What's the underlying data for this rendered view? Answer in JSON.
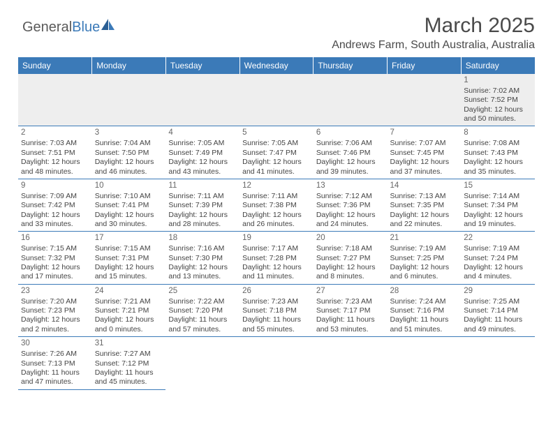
{
  "logo": {
    "text1": "General",
    "text2": "Blue"
  },
  "header": {
    "title": "March 2025",
    "subtitle": "Andrews Farm, South Australia, Australia"
  },
  "colors": {
    "header_bg": "#3b7ab8",
    "header_text": "#ffffff",
    "cell_border": "#3b7ab8",
    "firstrow_bg": "#eeeeee",
    "text": "#444444"
  },
  "weekdays": [
    "Sunday",
    "Monday",
    "Tuesday",
    "Wednesday",
    "Thursday",
    "Friday",
    "Saturday"
  ],
  "weeks": [
    [
      null,
      null,
      null,
      null,
      null,
      null,
      {
        "d": "1",
        "sr": "Sunrise: 7:02 AM",
        "ss": "Sunset: 7:52 PM",
        "dl1": "Daylight: 12 hours",
        "dl2": "and 50 minutes."
      }
    ],
    [
      {
        "d": "2",
        "sr": "Sunrise: 7:03 AM",
        "ss": "Sunset: 7:51 PM",
        "dl1": "Daylight: 12 hours",
        "dl2": "and 48 minutes."
      },
      {
        "d": "3",
        "sr": "Sunrise: 7:04 AM",
        "ss": "Sunset: 7:50 PM",
        "dl1": "Daylight: 12 hours",
        "dl2": "and 46 minutes."
      },
      {
        "d": "4",
        "sr": "Sunrise: 7:05 AM",
        "ss": "Sunset: 7:49 PM",
        "dl1": "Daylight: 12 hours",
        "dl2": "and 43 minutes."
      },
      {
        "d": "5",
        "sr": "Sunrise: 7:05 AM",
        "ss": "Sunset: 7:47 PM",
        "dl1": "Daylight: 12 hours",
        "dl2": "and 41 minutes."
      },
      {
        "d": "6",
        "sr": "Sunrise: 7:06 AM",
        "ss": "Sunset: 7:46 PM",
        "dl1": "Daylight: 12 hours",
        "dl2": "and 39 minutes."
      },
      {
        "d": "7",
        "sr": "Sunrise: 7:07 AM",
        "ss": "Sunset: 7:45 PM",
        "dl1": "Daylight: 12 hours",
        "dl2": "and 37 minutes."
      },
      {
        "d": "8",
        "sr": "Sunrise: 7:08 AM",
        "ss": "Sunset: 7:43 PM",
        "dl1": "Daylight: 12 hours",
        "dl2": "and 35 minutes."
      }
    ],
    [
      {
        "d": "9",
        "sr": "Sunrise: 7:09 AM",
        "ss": "Sunset: 7:42 PM",
        "dl1": "Daylight: 12 hours",
        "dl2": "and 33 minutes."
      },
      {
        "d": "10",
        "sr": "Sunrise: 7:10 AM",
        "ss": "Sunset: 7:41 PM",
        "dl1": "Daylight: 12 hours",
        "dl2": "and 30 minutes."
      },
      {
        "d": "11",
        "sr": "Sunrise: 7:11 AM",
        "ss": "Sunset: 7:39 PM",
        "dl1": "Daylight: 12 hours",
        "dl2": "and 28 minutes."
      },
      {
        "d": "12",
        "sr": "Sunrise: 7:11 AM",
        "ss": "Sunset: 7:38 PM",
        "dl1": "Daylight: 12 hours",
        "dl2": "and 26 minutes."
      },
      {
        "d": "13",
        "sr": "Sunrise: 7:12 AM",
        "ss": "Sunset: 7:36 PM",
        "dl1": "Daylight: 12 hours",
        "dl2": "and 24 minutes."
      },
      {
        "d": "14",
        "sr": "Sunrise: 7:13 AM",
        "ss": "Sunset: 7:35 PM",
        "dl1": "Daylight: 12 hours",
        "dl2": "and 22 minutes."
      },
      {
        "d": "15",
        "sr": "Sunrise: 7:14 AM",
        "ss": "Sunset: 7:34 PM",
        "dl1": "Daylight: 12 hours",
        "dl2": "and 19 minutes."
      }
    ],
    [
      {
        "d": "16",
        "sr": "Sunrise: 7:15 AM",
        "ss": "Sunset: 7:32 PM",
        "dl1": "Daylight: 12 hours",
        "dl2": "and 17 minutes."
      },
      {
        "d": "17",
        "sr": "Sunrise: 7:15 AM",
        "ss": "Sunset: 7:31 PM",
        "dl1": "Daylight: 12 hours",
        "dl2": "and 15 minutes."
      },
      {
        "d": "18",
        "sr": "Sunrise: 7:16 AM",
        "ss": "Sunset: 7:30 PM",
        "dl1": "Daylight: 12 hours",
        "dl2": "and 13 minutes."
      },
      {
        "d": "19",
        "sr": "Sunrise: 7:17 AM",
        "ss": "Sunset: 7:28 PM",
        "dl1": "Daylight: 12 hours",
        "dl2": "and 11 minutes."
      },
      {
        "d": "20",
        "sr": "Sunrise: 7:18 AM",
        "ss": "Sunset: 7:27 PM",
        "dl1": "Daylight: 12 hours",
        "dl2": "and 8 minutes."
      },
      {
        "d": "21",
        "sr": "Sunrise: 7:19 AM",
        "ss": "Sunset: 7:25 PM",
        "dl1": "Daylight: 12 hours",
        "dl2": "and 6 minutes."
      },
      {
        "d": "22",
        "sr": "Sunrise: 7:19 AM",
        "ss": "Sunset: 7:24 PM",
        "dl1": "Daylight: 12 hours",
        "dl2": "and 4 minutes."
      }
    ],
    [
      {
        "d": "23",
        "sr": "Sunrise: 7:20 AM",
        "ss": "Sunset: 7:23 PM",
        "dl1": "Daylight: 12 hours",
        "dl2": "and 2 minutes."
      },
      {
        "d": "24",
        "sr": "Sunrise: 7:21 AM",
        "ss": "Sunset: 7:21 PM",
        "dl1": "Daylight: 12 hours",
        "dl2": "and 0 minutes."
      },
      {
        "d": "25",
        "sr": "Sunrise: 7:22 AM",
        "ss": "Sunset: 7:20 PM",
        "dl1": "Daylight: 11 hours",
        "dl2": "and 57 minutes."
      },
      {
        "d": "26",
        "sr": "Sunrise: 7:23 AM",
        "ss": "Sunset: 7:18 PM",
        "dl1": "Daylight: 11 hours",
        "dl2": "and 55 minutes."
      },
      {
        "d": "27",
        "sr": "Sunrise: 7:23 AM",
        "ss": "Sunset: 7:17 PM",
        "dl1": "Daylight: 11 hours",
        "dl2": "and 53 minutes."
      },
      {
        "d": "28",
        "sr": "Sunrise: 7:24 AM",
        "ss": "Sunset: 7:16 PM",
        "dl1": "Daylight: 11 hours",
        "dl2": "and 51 minutes."
      },
      {
        "d": "29",
        "sr": "Sunrise: 7:25 AM",
        "ss": "Sunset: 7:14 PM",
        "dl1": "Daylight: 11 hours",
        "dl2": "and 49 minutes."
      }
    ],
    [
      {
        "d": "30",
        "sr": "Sunrise: 7:26 AM",
        "ss": "Sunset: 7:13 PM",
        "dl1": "Daylight: 11 hours",
        "dl2": "and 47 minutes."
      },
      {
        "d": "31",
        "sr": "Sunrise: 7:27 AM",
        "ss": "Sunset: 7:12 PM",
        "dl1": "Daylight: 11 hours",
        "dl2": "and 45 minutes."
      },
      null,
      null,
      null,
      null,
      null
    ]
  ]
}
